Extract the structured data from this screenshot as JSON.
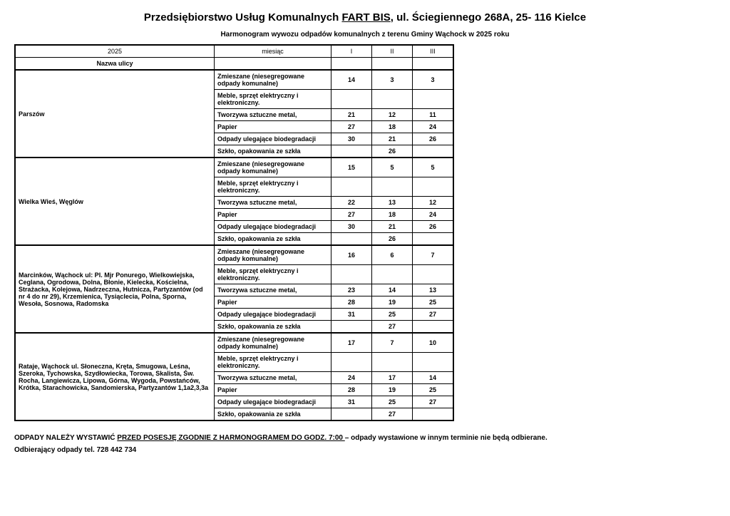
{
  "title_pre": "Przedsiębiorstwo Usług Komunalnych ",
  "title_uline": "FART BIS",
  "title_post": ", ul. Ściegiennego 268A, 25- 116 Kielce",
  "subtitle": "Harmonogram wywozu odpadów komunalnych z terenu Gminy Wąchock w 2025 roku",
  "header": {
    "year": "2025",
    "miesiac": "miesiąc",
    "m1": "I",
    "m2": "II",
    "m3": "III",
    "street_label": "Nazwa ulicy"
  },
  "waste_types": {
    "t0": "Zmieszane (niesegregowane odpady komunalne)",
    "t1": "Meble, sprzęt elektryczny i elektroniczny.",
    "t2": "Tworzywa sztuczne metal,",
    "t3": "Papier",
    "t4": "Odpady ulegające biodegradacji",
    "t5": "Szkło, opakowania ze szkła"
  },
  "groups": {
    "g0": {
      "street": "Parszów",
      "rows": [
        {
          "m1": "14",
          "m2": "3",
          "m3": "3"
        },
        {
          "m1": "",
          "m2": "",
          "m3": ""
        },
        {
          "m1": "21",
          "m2": "12",
          "m3": "11"
        },
        {
          "m1": "27",
          "m2": "18",
          "m3": "24"
        },
        {
          "m1": "30",
          "m2": "21",
          "m3": "26"
        },
        {
          "m1": "",
          "m2": "26",
          "m3": ""
        }
      ]
    },
    "g1": {
      "street": "Wielka Wieś, Węglów",
      "rows": [
        {
          "m1": "15",
          "m2": "5",
          "m3": "5"
        },
        {
          "m1": "",
          "m2": "",
          "m3": ""
        },
        {
          "m1": "22",
          "m2": "13",
          "m3": "12"
        },
        {
          "m1": "27",
          "m2": "18",
          "m3": "24"
        },
        {
          "m1": "30",
          "m2": "21",
          "m3": "26"
        },
        {
          "m1": "",
          "m2": "26",
          "m3": ""
        }
      ]
    },
    "g2": {
      "street": "Marcinków, Wąchock ul: Pl. Mjr Ponurego, Wielkowiejska, Ceglana, Ogrodowa, Dolna, Błonie, Kielecka, Kościelna, Strażacka, Kolejowa, Nadrzeczna, Hutnicza, Partyzantów (od nr 4 do nr 29), Krzemienica, Tysiąclecia, Polna, Sporna, Wesoła, Sosnowa, Radomska",
      "rows": [
        {
          "m1": "16",
          "m2": "6",
          "m3": "7"
        },
        {
          "m1": "",
          "m2": "",
          "m3": ""
        },
        {
          "m1": "23",
          "m2": "14",
          "m3": "13"
        },
        {
          "m1": "28",
          "m2": "19",
          "m3": "25"
        },
        {
          "m1": "31",
          "m2": "25",
          "m3": "27"
        },
        {
          "m1": "",
          "m2": "27",
          "m3": ""
        }
      ]
    },
    "g3": {
      "street": "Rataje, Wąchock ul. Słoneczna, Kręta, Smugowa, Leśna, Szeroka, Tychowska, Szydłowiecka, Torowa, Skalista, Św. Rocha, Langiewicza, Lipowa, Górna, Wygoda, Powstańców, Krótka, Starachowicka, Sandomierska, Partyzantów 1,1a2,3,3a",
      "rows": [
        {
          "m1": "17",
          "m2": "7",
          "m3": "10"
        },
        {
          "m1": "",
          "m2": "",
          "m3": ""
        },
        {
          "m1": "24",
          "m2": "17",
          "m3": "14"
        },
        {
          "m1": "28",
          "m2": "19",
          "m3": "25"
        },
        {
          "m1": "31",
          "m2": "25",
          "m3": "27"
        },
        {
          "m1": "",
          "m2": "27",
          "m3": ""
        }
      ]
    }
  },
  "footer": {
    "pre": "ODPADY NALEŻY WYSTAWIĆ ",
    "uline": "PRZED POSESJĘ ZGODNIE Z HARMONOGRAMEM DO GODZ. 7:00 ",
    "post": "– odpady wystawione w innym terminie nie będą odbierane.",
    "line2": "Odbierający odpady tel. 728 442 734"
  }
}
